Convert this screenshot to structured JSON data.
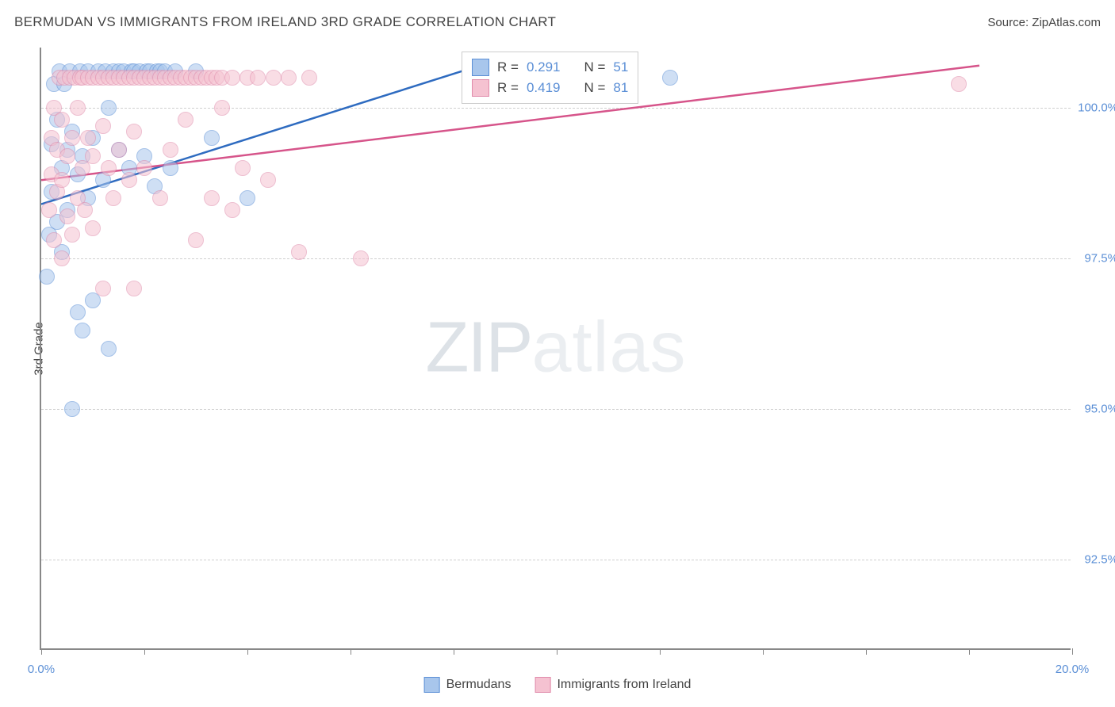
{
  "header": {
    "title": "BERMUDAN VS IMMIGRANTS FROM IRELAND 3RD GRADE CORRELATION CHART",
    "source_prefix": "Source: ",
    "source": "ZipAtlas.com"
  },
  "watermark": {
    "zip": "ZIP",
    "atlas": "atlas"
  },
  "chart": {
    "type": "scatter",
    "y_axis_label": "3rd Grade",
    "background_color": "#ffffff",
    "grid_color": "#d0d0d0",
    "axis_color": "#888888",
    "tick_label_color": "#5b8fd6",
    "xlim": [
      0,
      20
    ],
    "ylim": [
      91,
      101
    ],
    "x_ticks": [
      0,
      2,
      4,
      6,
      8,
      10,
      12,
      14,
      16,
      18,
      20
    ],
    "x_tick_labels": {
      "0": "0.0%",
      "20": "20.0%"
    },
    "y_gridlines": [
      92.5,
      95.0,
      97.5,
      100.0
    ],
    "y_tick_labels": {
      "92.5": "92.5%",
      "95.0": "95.0%",
      "97.5": "97.5%",
      "100.0": "100.0%"
    },
    "marker_radius": 10,
    "marker_opacity": 0.55,
    "series": [
      {
        "name": "Bermudans",
        "fill_color": "#a8c6ec",
        "stroke_color": "#5b8fd6",
        "trend_color": "#2e6bc0",
        "trend_width": 2.5,
        "r_value": "0.291",
        "n_value": "51",
        "trend": {
          "x1": 0,
          "y1": 98.4,
          "x2": 8.5,
          "y2": 100.7
        },
        "points": [
          [
            0.1,
            97.2
          ],
          [
            0.15,
            97.9
          ],
          [
            0.2,
            98.6
          ],
          [
            0.2,
            99.4
          ],
          [
            0.25,
            100.4
          ],
          [
            0.3,
            98.1
          ],
          [
            0.3,
            99.8
          ],
          [
            0.35,
            100.6
          ],
          [
            0.4,
            97.6
          ],
          [
            0.4,
            99.0
          ],
          [
            0.45,
            100.4
          ],
          [
            0.5,
            98.3
          ],
          [
            0.5,
            99.3
          ],
          [
            0.55,
            100.6
          ],
          [
            0.6,
            95.0
          ],
          [
            0.6,
            99.6
          ],
          [
            0.7,
            96.6
          ],
          [
            0.7,
            98.9
          ],
          [
            0.75,
            100.6
          ],
          [
            0.8,
            96.3
          ],
          [
            0.8,
            99.2
          ],
          [
            0.9,
            98.5
          ],
          [
            0.9,
            100.6
          ],
          [
            1.0,
            96.8
          ],
          [
            1.0,
            99.5
          ],
          [
            1.1,
            100.6
          ],
          [
            1.2,
            98.8
          ],
          [
            1.25,
            100.6
          ],
          [
            1.3,
            96.0
          ],
          [
            1.3,
            100.0
          ],
          [
            1.4,
            100.6
          ],
          [
            1.5,
            99.3
          ],
          [
            1.5,
            100.6
          ],
          [
            1.6,
            100.6
          ],
          [
            1.7,
            99.0
          ],
          [
            1.75,
            100.6
          ],
          [
            1.8,
            100.6
          ],
          [
            1.9,
            100.6
          ],
          [
            2.0,
            99.2
          ],
          [
            2.05,
            100.6
          ],
          [
            2.1,
            100.6
          ],
          [
            2.2,
            98.7
          ],
          [
            2.25,
            100.6
          ],
          [
            2.3,
            100.6
          ],
          [
            2.4,
            100.6
          ],
          [
            2.5,
            99.0
          ],
          [
            2.6,
            100.6
          ],
          [
            3.0,
            100.6
          ],
          [
            3.3,
            99.5
          ],
          [
            4.0,
            98.5
          ],
          [
            12.2,
            100.5
          ]
        ]
      },
      {
        "name": "Immigrants from Ireland",
        "fill_color": "#f5c2d1",
        "stroke_color": "#e08bab",
        "trend_color": "#d6548a",
        "trend_width": 2.5,
        "r_value": "0.419",
        "n_value": "81",
        "trend": {
          "x1": 0,
          "y1": 98.8,
          "x2": 18.2,
          "y2": 100.7
        },
        "points": [
          [
            0.15,
            98.3
          ],
          [
            0.2,
            98.9
          ],
          [
            0.2,
            99.5
          ],
          [
            0.25,
            97.8
          ],
          [
            0.25,
            100.0
          ],
          [
            0.3,
            98.6
          ],
          [
            0.3,
            99.3
          ],
          [
            0.35,
            100.5
          ],
          [
            0.4,
            97.5
          ],
          [
            0.4,
            98.8
          ],
          [
            0.4,
            99.8
          ],
          [
            0.45,
            100.5
          ],
          [
            0.5,
            98.2
          ],
          [
            0.5,
            99.2
          ],
          [
            0.55,
            100.5
          ],
          [
            0.6,
            97.9
          ],
          [
            0.6,
            99.5
          ],
          [
            0.65,
            100.5
          ],
          [
            0.7,
            98.5
          ],
          [
            0.7,
            100.0
          ],
          [
            0.75,
            100.5
          ],
          [
            0.8,
            99.0
          ],
          [
            0.8,
            100.5
          ],
          [
            0.85,
            98.3
          ],
          [
            0.9,
            99.5
          ],
          [
            0.9,
            100.5
          ],
          [
            1.0,
            98.0
          ],
          [
            1.0,
            99.2
          ],
          [
            1.0,
            100.5
          ],
          [
            1.1,
            100.5
          ],
          [
            1.2,
            97.0
          ],
          [
            1.2,
            99.7
          ],
          [
            1.2,
            100.5
          ],
          [
            1.3,
            99.0
          ],
          [
            1.3,
            100.5
          ],
          [
            1.4,
            98.5
          ],
          [
            1.4,
            100.5
          ],
          [
            1.5,
            99.3
          ],
          [
            1.5,
            100.5
          ],
          [
            1.6,
            100.5
          ],
          [
            1.7,
            98.8
          ],
          [
            1.7,
            100.5
          ],
          [
            1.8,
            97.0
          ],
          [
            1.8,
            99.6
          ],
          [
            1.8,
            100.5
          ],
          [
            1.9,
            100.5
          ],
          [
            2.0,
            99.0
          ],
          [
            2.0,
            100.5
          ],
          [
            2.1,
            100.5
          ],
          [
            2.2,
            100.5
          ],
          [
            2.3,
            98.5
          ],
          [
            2.3,
            100.5
          ],
          [
            2.4,
            100.5
          ],
          [
            2.5,
            99.3
          ],
          [
            2.5,
            100.5
          ],
          [
            2.6,
            100.5
          ],
          [
            2.7,
            100.5
          ],
          [
            2.8,
            99.8
          ],
          [
            2.8,
            100.5
          ],
          [
            2.9,
            100.5
          ],
          [
            3.0,
            97.8
          ],
          [
            3.0,
            100.5
          ],
          [
            3.1,
            100.5
          ],
          [
            3.2,
            100.5
          ],
          [
            3.3,
            98.5
          ],
          [
            3.3,
            100.5
          ],
          [
            3.4,
            100.5
          ],
          [
            3.5,
            100.0
          ],
          [
            3.5,
            100.5
          ],
          [
            3.7,
            98.3
          ],
          [
            3.7,
            100.5
          ],
          [
            3.9,
            99.0
          ],
          [
            4.0,
            100.5
          ],
          [
            4.2,
            100.5
          ],
          [
            4.4,
            98.8
          ],
          [
            4.5,
            100.5
          ],
          [
            4.8,
            100.5
          ],
          [
            5.0,
            97.6
          ],
          [
            5.2,
            100.5
          ],
          [
            6.2,
            97.5
          ],
          [
            17.8,
            100.4
          ]
        ]
      }
    ],
    "legend": {
      "series1_label": "Bermudans",
      "series2_label": "Immigrants from Ireland"
    },
    "stats_labels": {
      "r": "R =",
      "n": "N ="
    }
  }
}
